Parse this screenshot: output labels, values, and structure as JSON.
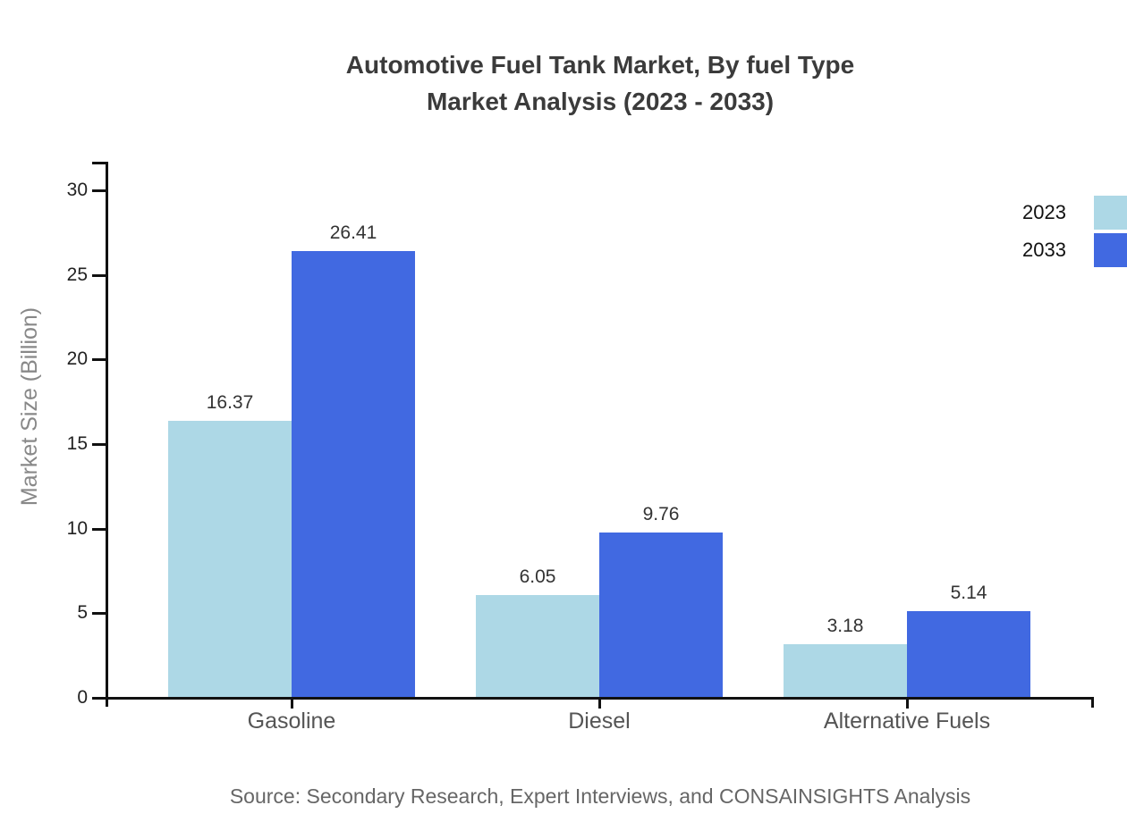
{
  "chart_data": {
    "type": "bar",
    "title_line1": "Automotive Fuel Tank Market, By fuel Type",
    "title_line2": "Market Analysis (2023 - 2033)",
    "categories": [
      "Gasoline",
      "Diesel",
      "Alternative Fuels"
    ],
    "series": [
      {
        "name": "2023",
        "color": "#ADD8E6",
        "values": [
          16.37,
          6.05,
          3.18
        ]
      },
      {
        "name": "2033",
        "color": "#4169E1",
        "values": [
          26.41,
          9.76,
          5.14
        ]
      }
    ],
    "ylabel": "Market Size (Billion)",
    "xlabel": "",
    "y_ticks": [
      0,
      5,
      10,
      15,
      20,
      25,
      30
    ],
    "ylim": [
      0,
      31.7
    ],
    "grid": false,
    "legend_position": "top-right",
    "value_labels": true,
    "axis_color": "#111111",
    "value_label_color": "#333333"
  },
  "source_note": "Source: Secondary Research, Expert Interviews, and CONSAINSIGHTS Analysis"
}
